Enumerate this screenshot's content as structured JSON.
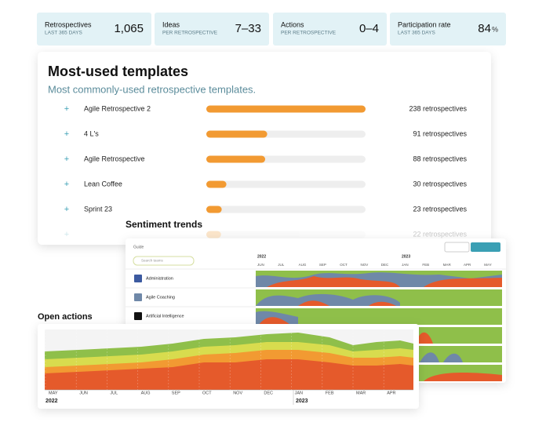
{
  "stats": [
    {
      "label": "Retrospectives",
      "sublabel": "LAST 365 DAYS",
      "value": "1,065"
    },
    {
      "label": "Ideas",
      "sublabel": "PER RETROSPECTIVE",
      "value": "7–33"
    },
    {
      "label": "Actions",
      "sublabel": "PER RETROSPECTIVE",
      "value": "0–4"
    },
    {
      "label": "Participation rate",
      "sublabel": "LAST 365 DAYS",
      "value": "84",
      "unit": "%"
    }
  ],
  "templates": {
    "title": "Most-used templates",
    "subtitle": "Most commonly-used retrospective templates.",
    "rows": [
      {
        "name": "Agile Retrospective 2",
        "count": 238,
        "count_label": "238 retrospectives"
      },
      {
        "name": "4 L's",
        "count": 91,
        "count_label": "91 retrospectives"
      },
      {
        "name": "Agile Retrospective",
        "count": 88,
        "count_label": "88 retrospectives"
      },
      {
        "name": "Lean Coffee",
        "count": 30,
        "count_label": "30 retrospectives"
      },
      {
        "name": "Sprint 23",
        "count": 23,
        "count_label": "23 retrospectives"
      },
      {
        "count": 22,
        "count_label": "22 retrospectives"
      }
    ]
  },
  "sentiment": {
    "title": "Sentiment trends",
    "guide": "Guide",
    "search": "Search teams",
    "years": [
      "2022",
      "2023"
    ],
    "months": [
      "JUN",
      "JUL",
      "AUG",
      "SEP",
      "OCT",
      "NOV",
      "DEC",
      "JAN",
      "FEB",
      "MAR",
      "APR",
      "MAY"
    ],
    "teams": [
      "Administration",
      "Agile Coaching",
      "Artificial Intelligence"
    ]
  },
  "open_actions": {
    "title": "Open actions",
    "months": [
      "MAY",
      "JUN",
      "JUL",
      "AUG",
      "SEP",
      "OCT",
      "NOV",
      "DEC",
      "JAN",
      "FEB",
      "MAR",
      "APR"
    ],
    "years": [
      "2022",
      "2023"
    ]
  }
}
